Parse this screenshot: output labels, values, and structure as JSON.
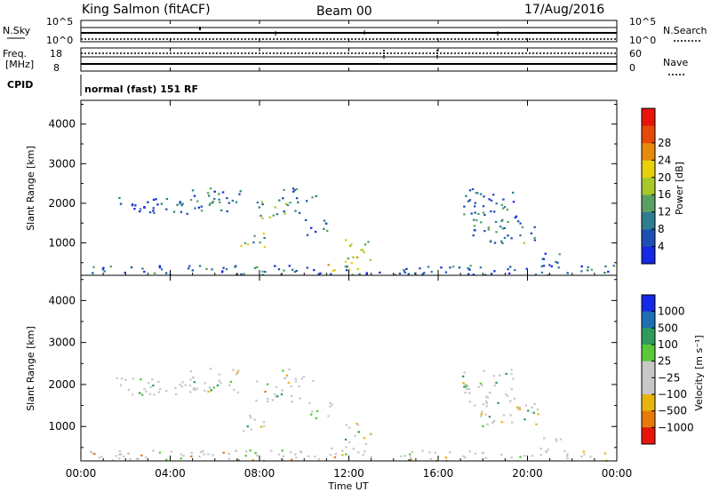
{
  "header": {
    "title": "King Salmon (fitACF)",
    "beam": "Beam 00",
    "date": "17/Aug/2016"
  },
  "top_panels": {
    "nsky": {
      "label": "N.Sky",
      "tick_hi": "10^5",
      "tick_lo": "10^0"
    },
    "nsearch": {
      "label": "N.Search",
      "tick_hi": "10^5",
      "tick_lo": "10^0"
    },
    "freq": {
      "label_line1": "Freq.",
      "label_line2": "[MHz]",
      "tick_hi": "18",
      "tick_lo": "8"
    },
    "nave": {
      "label": "Nave",
      "tick_hi": "60",
      "tick_lo": "0"
    },
    "cpid": {
      "label": "CPID",
      "text": "normal (fast) 151 RF"
    }
  },
  "chart_data": [
    {
      "type": "heatmap",
      "title": "",
      "xlabel": "Time UT",
      "ylabel": "Slant Range [km]",
      "x_ticks": [
        "00:00",
        "04:00",
        "08:00",
        "12:00",
        "16:00",
        "20:00",
        "00:00"
      ],
      "y_ticks": [
        1000,
        2000,
        3000,
        4000
      ],
      "xlim": [
        0,
        24
      ],
      "ylim": [
        180,
        4600
      ],
      "colorbar": {
        "label": "Power [dB]",
        "ticks": [
          "4",
          "8",
          "12",
          "16",
          "20",
          "24",
          "28"
        ],
        "range": [
          0,
          30
        ],
        "colors": [
          "#1428e6",
          "#1d4fb4",
          "#2f7d92",
          "#5aa064",
          "#a8c82a",
          "#e6d10a",
          "#e68a0a",
          "#e64a0a",
          "#e6140a"
        ]
      },
      "clusters": [
        {
          "t": [
            1.5,
            5.5
          ],
          "r": [
            1750,
            2200
          ],
          "level": 6
        },
        {
          "t": [
            4.8,
            7.2
          ],
          "r": [
            1800,
            2400
          ],
          "level": 7
        },
        {
          "t": [
            7.0,
            8.3
          ],
          "r": [
            900,
            1300
          ],
          "level": 14
        },
        {
          "t": [
            7.8,
            9.8
          ],
          "r": [
            1600,
            2100
          ],
          "level": 10
        },
        {
          "t": [
            9.0,
            10.5
          ],
          "r": [
            2000,
            2400
          ],
          "level": 8
        },
        {
          "t": [
            10.0,
            11.3
          ],
          "r": [
            1200,
            1600
          ],
          "level": 6
        },
        {
          "t": [
            11.8,
            13.0
          ],
          "r": [
            500,
            1100
          ],
          "level": 16
        },
        {
          "t": [
            11.0,
            12.5
          ],
          "r": [
            300,
            520
          ],
          "level": 22
        },
        {
          "t": [
            17.0,
            19.5
          ],
          "r": [
            1600,
            2400
          ],
          "level": 7
        },
        {
          "t": [
            17.5,
            20.5
          ],
          "r": [
            1000,
            1600
          ],
          "level": 9
        },
        {
          "t": [
            20.5,
            21.5
          ],
          "r": [
            400,
            800
          ],
          "level": 6
        },
        {
          "t": [
            0.3,
            24.0
          ],
          "r": [
            200,
            450
          ],
          "level": 6
        }
      ]
    },
    {
      "type": "heatmap",
      "title": "",
      "xlabel": "Time UT",
      "ylabel": "Slant Range [km]",
      "x_ticks": [
        "00:00",
        "04:00",
        "08:00",
        "12:00",
        "16:00",
        "20:00",
        "00:00"
      ],
      "y_ticks": [
        1000,
        2000,
        3000,
        4000
      ],
      "xlim": [
        0,
        24
      ],
      "ylim": [
        180,
        4600
      ],
      "colorbar": {
        "label": "Velocity [m s⁻¹]",
        "ticks": [
          "1000",
          "500",
          "100",
          "25",
          "−25",
          "−100",
          "−500",
          "−1000"
        ],
        "colors": [
          "#1428e6",
          "#1d6fb4",
          "#2f9a5a",
          "#5ac83a",
          "#c8c8c8",
          "#c8c8c8",
          "#e6b40a",
          "#e67a0a",
          "#e6140a"
        ]
      },
      "clusters": [
        {
          "t": [
            1.5,
            5.5
          ],
          "r": [
            1750,
            2200
          ],
          "level": 4
        },
        {
          "t": [
            4.8,
            7.2
          ],
          "r": [
            1800,
            2400
          ],
          "level": 4
        },
        {
          "t": [
            7.0,
            8.3
          ],
          "r": [
            900,
            1300
          ],
          "level": 4
        },
        {
          "t": [
            7.8,
            9.8
          ],
          "r": [
            1600,
            2100
          ],
          "level": 4
        },
        {
          "t": [
            9.0,
            10.5
          ],
          "r": [
            2000,
            2400
          ],
          "level": 4
        },
        {
          "t": [
            10.0,
            11.3
          ],
          "r": [
            1200,
            1600
          ],
          "level": 3
        },
        {
          "t": [
            11.8,
            13.0
          ],
          "r": [
            500,
            1100
          ],
          "level": 4
        },
        {
          "t": [
            11.0,
            12.5
          ],
          "r": [
            300,
            520
          ],
          "level": 3
        },
        {
          "t": [
            17.0,
            19.5
          ],
          "r": [
            1600,
            2400
          ],
          "level": 4
        },
        {
          "t": [
            17.5,
            20.5
          ],
          "r": [
            1000,
            1600
          ],
          "level": 4
        },
        {
          "t": [
            20.5,
            21.5
          ],
          "r": [
            400,
            800
          ],
          "level": 4
        },
        {
          "t": [
            0.3,
            24.0
          ],
          "r": [
            200,
            450
          ],
          "level": 3
        }
      ]
    }
  ]
}
